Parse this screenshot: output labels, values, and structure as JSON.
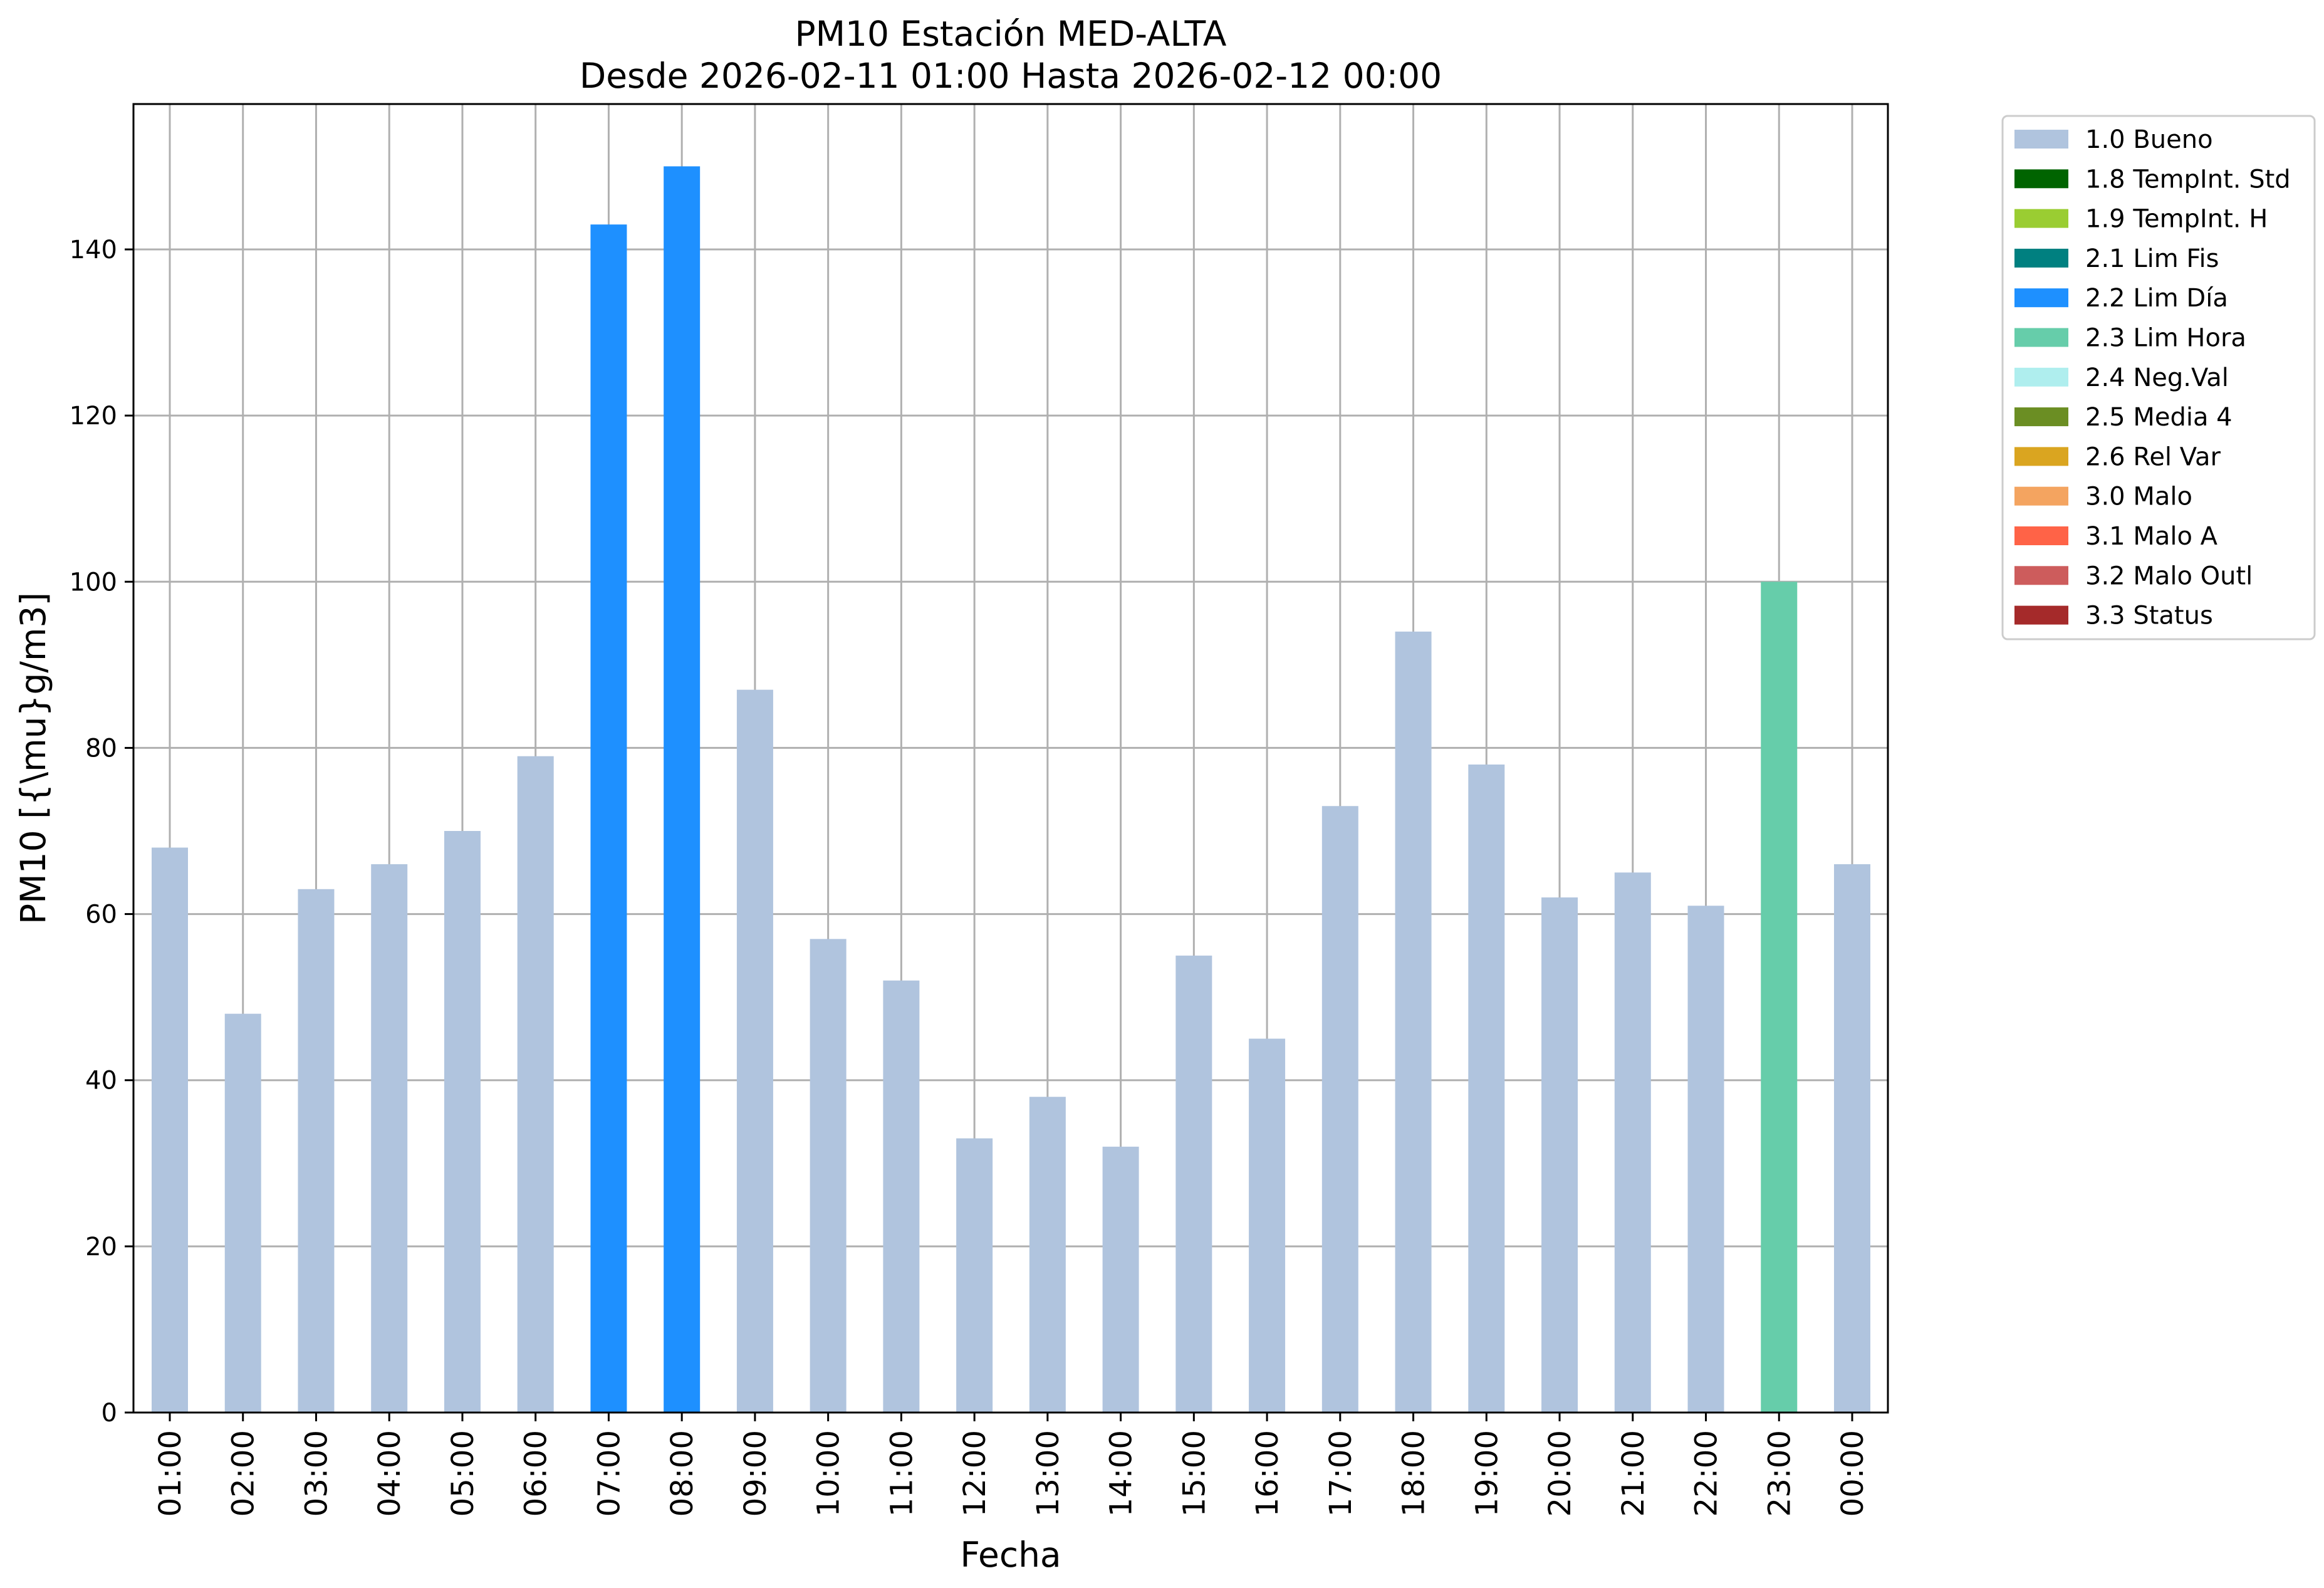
{
  "chart_data": {
    "type": "bar",
    "title": "PM10 Estación MED-ALTA",
    "subtitle": "Desde 2026-02-11 01:00 Hasta 2026-02-12 00:00",
    "xlabel": "Fecha",
    "ylabel": "PM10 [{\\mu}g/m3]",
    "ylim": [
      0,
      157.5
    ],
    "yticks": [
      0,
      20,
      40,
      60,
      80,
      100,
      120,
      140
    ],
    "grid": true,
    "legend_placement": "outside-top-right",
    "categories": [
      "01:00",
      "02:00",
      "03:00",
      "04:00",
      "05:00",
      "06:00",
      "07:00",
      "08:00",
      "09:00",
      "10:00",
      "11:00",
      "12:00",
      "13:00",
      "14:00",
      "15:00",
      "16:00",
      "17:00",
      "18:00",
      "19:00",
      "20:00",
      "21:00",
      "22:00",
      "23:00",
      "00:00"
    ],
    "values": [
      68,
      48,
      63,
      66,
      70,
      79,
      143,
      150,
      87,
      57,
      52,
      33,
      38,
      32,
      55,
      45,
      73,
      94,
      78,
      62,
      65,
      61,
      100,
      66
    ],
    "flags": [
      "1.0 Bueno",
      "1.0 Bueno",
      "1.0 Bueno",
      "1.0 Bueno",
      "1.0 Bueno",
      "1.0 Bueno",
      "2.2 Lim Día",
      "2.2 Lim Día",
      "1.0 Bueno",
      "1.0 Bueno",
      "1.0 Bueno",
      "1.0 Bueno",
      "1.0 Bueno",
      "1.0 Bueno",
      "1.0 Bueno",
      "1.0 Bueno",
      "1.0 Bueno",
      "1.0 Bueno",
      "1.0 Bueno",
      "1.0 Bueno",
      "1.0 Bueno",
      "1.0 Bueno",
      "2.3 Lim Hora",
      "1.0 Bueno"
    ],
    "legend": [
      {
        "name": "1.0 Bueno",
        "color": "#b0c4de"
      },
      {
        "name": "1.8 TempInt. Std",
        "color": "#006400"
      },
      {
        "name": "1.9 TempInt. H",
        "color": "#9acd32"
      },
      {
        "name": "2.1 Lim Fis",
        "color": "#008080"
      },
      {
        "name": "2.2 Lim Día",
        "color": "#1e90ff"
      },
      {
        "name": "2.3 Lim Hora",
        "color": "#66cdaa"
      },
      {
        "name": "2.4 Neg.Val",
        "color": "#afeeee"
      },
      {
        "name": "2.5 Media 4",
        "color": "#6b8e23"
      },
      {
        "name": "2.6 Rel Var",
        "color": "#daa520"
      },
      {
        "name": "3.0 Malo",
        "color": "#f4a460"
      },
      {
        "name": "3.1 Malo A",
        "color": "#ff6347"
      },
      {
        "name": "3.2 Malo Outl",
        "color": "#cd5c5c"
      },
      {
        "name": "3.3 Status",
        "color": "#a52a2a"
      }
    ]
  }
}
